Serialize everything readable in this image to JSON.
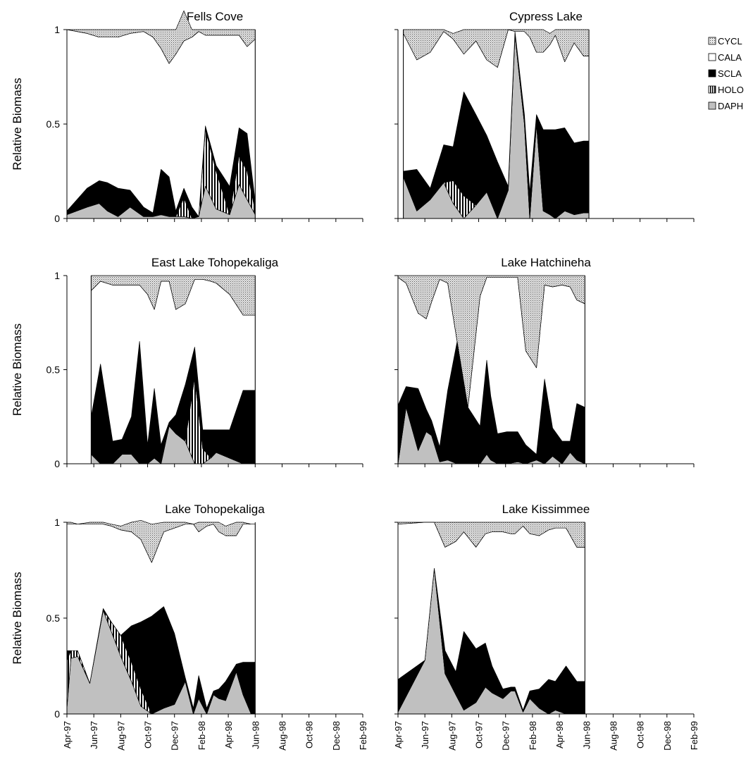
{
  "chart_data": {
    "type": "area",
    "stacked": true,
    "ylabel": "Relative Biomass",
    "yticks": [
      0,
      0.5,
      1
    ],
    "ylim": [
      0,
      1
    ],
    "x_tick_labels": [
      "Apr-97",
      "Jun-97",
      "Aug-97",
      "Oct-97",
      "Dec-97",
      "Feb-98",
      "Apr-98",
      "Jun-98",
      "Aug-98",
      "Oct-98",
      "Dec-98",
      "Feb-99"
    ],
    "x_range": [
      "Apr-97",
      "Feb-99"
    ],
    "legend_position": "top-right",
    "legend": [
      {
        "name": "CYCL",
        "fill": "pattern-dots",
        "color": "#d9d9d9"
      },
      {
        "name": "CALA",
        "fill": "solid",
        "color": "#ffffff"
      },
      {
        "name": "SCLA",
        "fill": "solid",
        "color": "#000000"
      },
      {
        "name": "HOLO",
        "fill": "pattern-vstripes",
        "color": "#000000"
      },
      {
        "name": "DAPH",
        "fill": "solid",
        "color": "#c0c0c0"
      }
    ],
    "panels": [
      {
        "title": "Fells Cove",
        "x": [
          0,
          1.5,
          2.4,
          3,
          3.8,
          4.7,
          5.7,
          6.4,
          7,
          7.6,
          8.1,
          8.7,
          9.3,
          9.8,
          10.3,
          11.1,
          12.1,
          12.8,
          13.4,
          14
        ],
        "series": [
          {
            "name": "DAPH",
            "values": [
              0.02,
              0.06,
              0.08,
              0.04,
              0.01,
              0.06,
              0.01,
              0.01,
              0.02,
              0.01,
              0.01,
              0.01,
              0.0,
              0.01,
              0.17,
              0.05,
              0.02,
              0.18,
              0.1,
              0.02
            ]
          },
          {
            "name": "HOLO",
            "values": [
              0.0,
              0.0,
              0.0,
              0.0,
              0.0,
              0.0,
              0.0,
              0.0,
              0.0,
              0.0,
              0.0,
              0.1,
              0.0,
              0.0,
              0.3,
              0.2,
              0.0,
              0.15,
              0.15,
              0.02
            ]
          },
          {
            "name": "SCLA",
            "values": [
              0.02,
              0.1,
              0.12,
              0.15,
              0.15,
              0.09,
              0.05,
              0.02,
              0.24,
              0.21,
              0.03,
              0.05,
              0.06,
              0.0,
              0.02,
              0.03,
              0.15,
              0.15,
              0.2,
              0.05
            ]
          },
          {
            "name": "CALA",
            "values": [
              0.96,
              0.82,
              0.76,
              0.77,
              0.8,
              0.83,
              0.93,
              0.93,
              0.64,
              0.6,
              0.83,
              0.78,
              0.9,
              0.98,
              0.48,
              0.69,
              0.8,
              0.49,
              0.46,
              0.86
            ]
          },
          {
            "name": "CYCL",
            "values": [
              0.0,
              0.02,
              0.04,
              0.04,
              0.04,
              0.02,
              0.01,
              0.04,
              0.1,
              0.18,
              0.13,
              0.16,
              0.04,
              0.01,
              0.03,
              0.03,
              0.03,
              0.03,
              0.09,
              0.05
            ]
          }
        ]
      },
      {
        "title": "Cypress Lake",
        "x": [
          0.4,
          1.4,
          2.4,
          3.4,
          4.1,
          4.9,
          5.8,
          6.6,
          7.4,
          8.2,
          8.7,
          9.4,
          9.8,
          10.3,
          10.8,
          11.3,
          11.7,
          12.4,
          13.1,
          13.8,
          14.2
        ],
        "series": [
          {
            "name": "DAPH",
            "values": [
              0.22,
              0.04,
              0.1,
              0.19,
              0.08,
              0.0,
              0.07,
              0.14,
              0.0,
              0.15,
              0.97,
              0.5,
              0.0,
              0.5,
              0.04,
              0.02,
              0.0,
              0.04,
              0.02,
              0.03,
              0.03
            ]
          },
          {
            "name": "HOLO",
            "values": [
              0.0,
              0.0,
              0.0,
              0.0,
              0.12,
              0.12,
              0.0,
              0.0,
              0.0,
              0.0,
              0.0,
              0.0,
              0.0,
              0.0,
              0.0,
              0.0,
              0.0,
              0.0,
              0.0,
              0.0,
              0.0
            ]
          },
          {
            "name": "SCLA",
            "values": [
              0.03,
              0.22,
              0.06,
              0.2,
              0.18,
              0.55,
              0.48,
              0.3,
              0.3,
              0.02,
              0.02,
              0.05,
              0.14,
              0.05,
              0.43,
              0.45,
              0.47,
              0.44,
              0.38,
              0.38,
              0.38
            ]
          },
          {
            "name": "CALA",
            "values": [
              0.73,
              0.58,
              0.72,
              0.6,
              0.57,
              0.2,
              0.39,
              0.4,
              0.5,
              0.83,
              0.0,
              0.44,
              0.82,
              0.33,
              0.41,
              0.45,
              0.5,
              0.35,
              0.53,
              0.45,
              0.45
            ]
          },
          {
            "name": "CYCL",
            "values": [
              0.02,
              0.16,
              0.12,
              0.01,
              0.03,
              0.13,
              0.06,
              0.16,
              0.2,
              0.0,
              0.01,
              0.01,
              0.04,
              0.12,
              0.12,
              0.06,
              0.03,
              0.17,
              0.07,
              0.14,
              0.14
            ]
          }
        ]
      },
      {
        "title": "East Lake Tohopekaliga",
        "x": [
          1.8,
          2.5,
          3.4,
          4.1,
          4.8,
          5.4,
          6,
          6.5,
          7,
          7.6,
          8.1,
          8.8,
          9.5,
          10.1,
          10.7,
          11.1,
          12.1,
          13.1,
          14
        ],
        "series": [
          {
            "name": "DAPH",
            "values": [
              0.05,
              0.0,
              0.0,
              0.05,
              0.05,
              0.0,
              0.0,
              0.03,
              0.0,
              0.2,
              0.16,
              0.12,
              0.0,
              0.0,
              0.03,
              0.06,
              0.03,
              0.0,
              0.0
            ]
          },
          {
            "name": "HOLO",
            "values": [
              0.0,
              0.0,
              0.0,
              0.0,
              0.0,
              0.0,
              0.0,
              0.0,
              0.0,
              0.0,
              0.0,
              0.0,
              0.46,
              0.08,
              0.0,
              0.0,
              0.0,
              0.0,
              0.0
            ]
          },
          {
            "name": "SCLA",
            "values": [
              0.2,
              0.53,
              0.12,
              0.08,
              0.2,
              0.65,
              0.1,
              0.37,
              0.1,
              0.02,
              0.1,
              0.3,
              0.16,
              0.1,
              0.15,
              0.12,
              0.15,
              0.39,
              0.39
            ]
          },
          {
            "name": "CALA",
            "values": [
              0.67,
              0.44,
              0.83,
              0.82,
              0.7,
              0.3,
              0.8,
              0.42,
              0.87,
              0.75,
              0.56,
              0.43,
              0.36,
              0.8,
              0.79,
              0.78,
              0.72,
              0.4,
              0.4
            ]
          },
          {
            "name": "CYCL",
            "values": [
              0.08,
              0.03,
              0.05,
              0.05,
              0.05,
              0.05,
              0.1,
              0.18,
              0.03,
              0.03,
              0.18,
              0.15,
              0.02,
              0.02,
              0.03,
              0.04,
              0.1,
              0.21,
              0.21
            ]
          }
        ]
      },
      {
        "title": "Lake Hatchineha",
        "x": [
          0,
          0.6,
          1.5,
          2.1,
          2.5,
          3.1,
          3.7,
          4.4,
          5.2,
          6.1,
          6.6,
          6.9,
          7.4,
          8.1,
          8.9,
          9.5,
          10.3,
          10.9,
          11.5,
          12.2,
          12.8,
          13.3,
          13.9
        ],
        "series": [
          {
            "name": "DAPH",
            "values": [
              0.0,
              0.3,
              0.07,
              0.17,
              0.15,
              0.01,
              0.02,
              0.0,
              0.0,
              0.0,
              0.05,
              0.02,
              0.0,
              0.0,
              0.01,
              0.0,
              0.02,
              0.0,
              0.04,
              0.0,
              0.06,
              0.02,
              0.0
            ]
          },
          {
            "name": "HOLO",
            "values": [
              0.0,
              0.0,
              0.0,
              0.0,
              0.0,
              0.0,
              0.0,
              0.0,
              0.0,
              0.0,
              0.0,
              0.0,
              0.0,
              0.0,
              0.0,
              0.0,
              0.0,
              0.0,
              0.0,
              0.0,
              0.0,
              0.0,
              0.0
            ]
          },
          {
            "name": "SCLA",
            "values": [
              0.31,
              0.11,
              0.33,
              0.12,
              0.08,
              0.08,
              0.37,
              0.65,
              0.3,
              0.2,
              0.5,
              0.34,
              0.16,
              0.17,
              0.16,
              0.1,
              0.03,
              0.45,
              0.15,
              0.12,
              0.06,
              0.3,
              0.3
            ]
          },
          {
            "name": "CALA",
            "values": [
              0.68,
              0.55,
              0.4,
              0.48,
              0.63,
              0.89,
              0.57,
              0.0,
              0.0,
              0.69,
              0.44,
              0.63,
              0.83,
              0.82,
              0.82,
              0.5,
              0.46,
              0.5,
              0.75,
              0.83,
              0.82,
              0.55,
              0.55
            ]
          },
          {
            "name": "CYCL",
            "values": [
              0.01,
              0.04,
              0.2,
              0.23,
              0.14,
              0.02,
              0.04,
              0.35,
              0.7,
              0.11,
              0.01,
              0.01,
              0.01,
              0.01,
              0.01,
              0.4,
              0.49,
              0.05,
              0.06,
              0.05,
              0.06,
              0.13,
              0.15
            ]
          }
        ]
      },
      {
        "title": "Lake Tohopekaliga",
        "x": [
          0,
          0.3,
          0.8,
          1.7,
          2.7,
          3.3,
          4,
          4.8,
          5.5,
          6.3,
          7.2,
          8,
          8.8,
          9.4,
          9.8,
          10.4,
          10.9,
          11.3,
          11.8,
          12.6,
          13.1,
          13.7,
          14
        ],
        "series": [
          {
            "name": "DAPH",
            "values": [
              0.03,
              0.29,
              0.3,
              0.16,
              0.54,
              0.43,
              0.3,
              0.17,
              0.04,
              0.0,
              0.03,
              0.05,
              0.17,
              0.0,
              0.08,
              0.0,
              0.1,
              0.08,
              0.07,
              0.22,
              0.1,
              0.0,
              0.0
            ]
          },
          {
            "name": "HOLO",
            "values": [
              0.25,
              0.04,
              0.03,
              0.0,
              0.0,
              0.05,
              0.11,
              0.1,
              0.09,
              0.0,
              0.0,
              0.0,
              0.0,
              0.0,
              0.0,
              0.0,
              0.0,
              0.0,
              0.0,
              0.0,
              0.0,
              0.0,
              0.0
            ]
          },
          {
            "name": "SCLA",
            "values": [
              0.05,
              0.0,
              0.0,
              0.0,
              0.01,
              0.0,
              0.0,
              0.19,
              0.35,
              0.51,
              0.53,
              0.37,
              0.02,
              0.03,
              0.12,
              0.03,
              0.02,
              0.05,
              0.1,
              0.04,
              0.17,
              0.27,
              0.27
            ]
          },
          {
            "name": "CALA",
            "values": [
              0.66,
              0.66,
              0.66,
              0.83,
              0.44,
              0.5,
              0.55,
              0.49,
              0.43,
              0.28,
              0.39,
              0.55,
              0.8,
              0.96,
              0.75,
              0.95,
              0.87,
              0.82,
              0.76,
              0.67,
              0.72,
              0.72,
              0.72
            ]
          },
          {
            "name": "CYCL",
            "values": [
              0.01,
              0.01,
              0.0,
              0.01,
              0.01,
              0.01,
              0.02,
              0.05,
              0.1,
              0.2,
              0.05,
              0.03,
              0.01,
              0.0,
              0.05,
              0.02,
              0.01,
              0.05,
              0.05,
              0.07,
              0.01,
              0.0,
              0.0
            ]
          }
        ]
      },
      {
        "title": "Lake Kissimmee",
        "x": [
          0,
          2,
          2.7,
          3.5,
          4.3,
          4.9,
          5.8,
          6.5,
          7,
          7.8,
          8.4,
          8.7,
          9.3,
          9.8,
          10.5,
          11.2,
          11.7,
          12.5,
          13.3,
          13.9
        ],
        "series": [
          {
            "name": "DAPH",
            "values": [
              0.01,
              0.28,
              0.76,
              0.21,
              0.1,
              0.02,
              0.06,
              0.14,
              0.11,
              0.08,
              0.12,
              0.12,
              0.01,
              0.08,
              0.03,
              0.0,
              0.02,
              0.0,
              0.0,
              0.0
            ]
          },
          {
            "name": "HOLO",
            "values": [
              0.0,
              0.0,
              0.0,
              0.0,
              0.0,
              0.0,
              0.0,
              0.0,
              0.0,
              0.0,
              0.0,
              0.0,
              0.0,
              0.0,
              0.0,
              0.0,
              0.0,
              0.0,
              0.0,
              0.0
            ]
          },
          {
            "name": "SCLA",
            "values": [
              0.17,
              0.0,
              0.0,
              0.12,
              0.12,
              0.41,
              0.28,
              0.23,
              0.14,
              0.05,
              0.02,
              0.02,
              0.01,
              0.04,
              0.1,
              0.18,
              0.15,
              0.25,
              0.17,
              0.17
            ]
          },
          {
            "name": "CALA",
            "values": [
              0.81,
              0.72,
              0.24,
              0.54,
              0.68,
              0.52,
              0.53,
              0.57,
              0.7,
              0.82,
              0.8,
              0.8,
              0.96,
              0.82,
              0.8,
              0.78,
              0.8,
              0.72,
              0.7,
              0.7
            ]
          },
          {
            "name": "CYCL",
            "values": [
              0.01,
              0.0,
              0.0,
              0.13,
              0.1,
              0.05,
              0.13,
              0.06,
              0.05,
              0.05,
              0.06,
              0.06,
              0.02,
              0.06,
              0.07,
              0.04,
              0.03,
              0.03,
              0.13,
              0.13
            ]
          }
        ]
      }
    ]
  }
}
